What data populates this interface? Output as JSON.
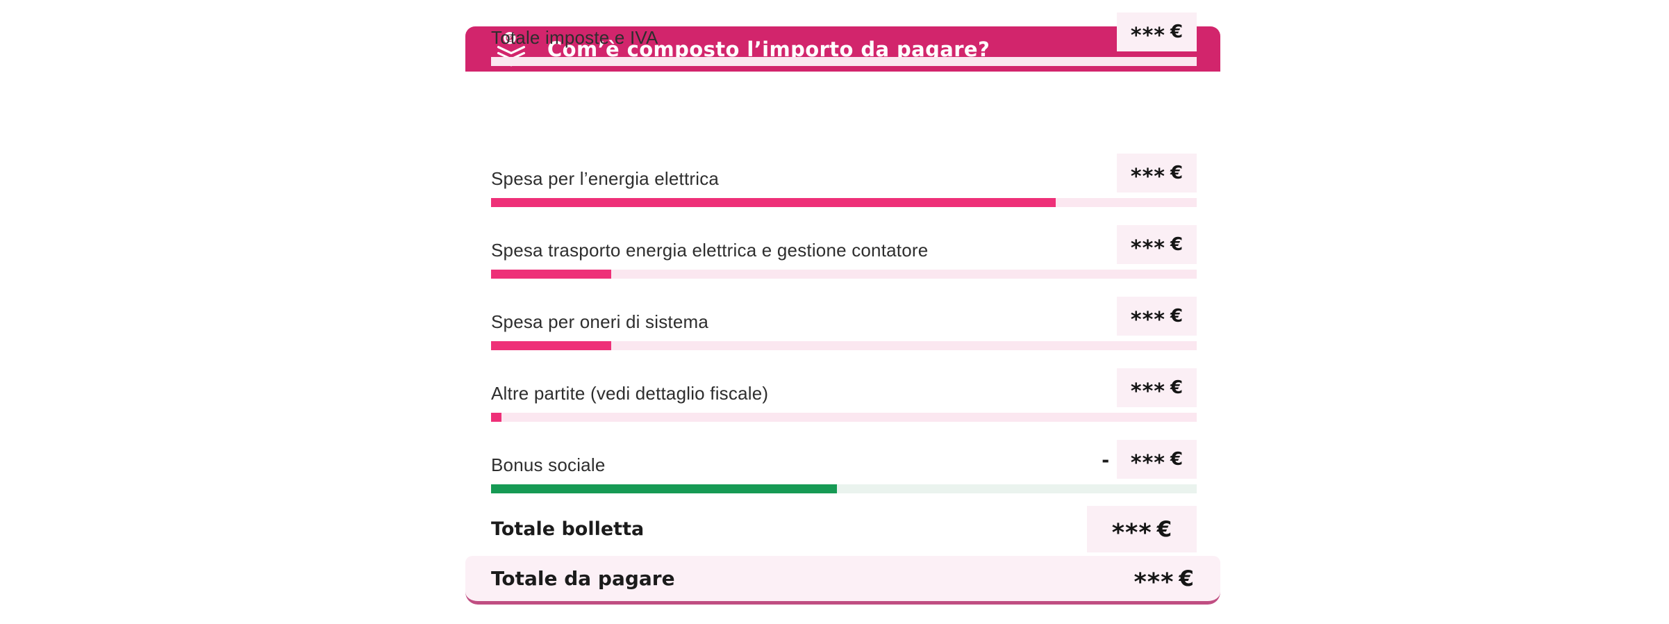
{
  "card": {
    "header": {
      "title": "Com’è composto l’importo da pagare?",
      "icon": "euro-coin-layers-icon"
    },
    "rows": [
      {
        "label": "Spesa per l’energia elettrica",
        "value": "***",
        "currency": "€",
        "sign": "",
        "bar_percent": 80,
        "bar_color": "pink"
      },
      {
        "label": "Spesa trasporto energia elettrica e gestione contatore",
        "value": "***",
        "currency": "€",
        "sign": "",
        "bar_percent": 17,
        "bar_color": "pink"
      },
      {
        "label": "Spesa per oneri di sistema",
        "value": "***",
        "currency": "€",
        "sign": "",
        "bar_percent": 17,
        "bar_color": "pink"
      },
      {
        "label": "Altre partite (vedi dettaglio fiscale)",
        "value": "***",
        "currency": "€",
        "sign": "",
        "bar_percent": 1.5,
        "bar_color": "pink"
      },
      {
        "label": "Bonus sociale",
        "value": "***",
        "currency": "€",
        "sign": "-",
        "bar_percent": 49,
        "bar_color": "green"
      },
      {
        "label": "Totale imposte e IVA",
        "value": "***",
        "currency": "€",
        "sign": "",
        "bar_percent": 0,
        "bar_color": "pink"
      }
    ],
    "totals": [
      {
        "label": "Totale bolletta",
        "value": "***",
        "currency": "€"
      },
      {
        "label": "Totale da pagare",
        "value": "***",
        "currency": "€"
      }
    ]
  },
  "colors": {
    "header_bg": "#d2256c",
    "header_text": "#ffffff",
    "bar_fill_pink": "#ee3078",
    "bar_track_pink": "#fbe7f0",
    "bar_fill_green": "#169a54",
    "bar_track_green": "#eaf3ee",
    "amount_box_bg": "#fbeff5",
    "grand_total_row_bg": "#fcf0f6",
    "grand_total_border": "#c04e82",
    "label_text": "#2e2e2e",
    "amount_text": "#151515"
  }
}
